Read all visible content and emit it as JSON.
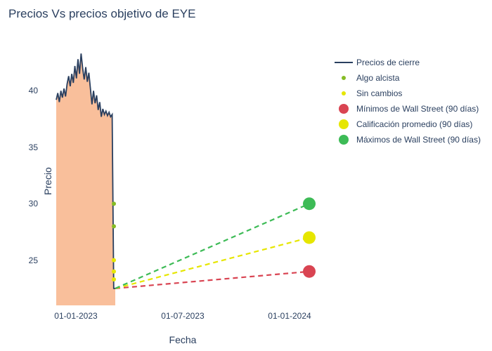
{
  "title": "Precios Vs precios objetivo de EYE",
  "axes": {
    "x": {
      "title": "Fecha",
      "ticks": [
        {
          "label": "01-01-2023",
          "t": 0.12
        },
        {
          "label": "01-07-2023",
          "t": 0.5
        },
        {
          "label": "01-01-2024",
          "t": 0.88
        }
      ],
      "range_t": [
        0.0,
        1.0
      ]
    },
    "y": {
      "title": "Precio",
      "ticks": [
        25,
        30,
        35,
        40
      ],
      "range": [
        21,
        44
      ]
    }
  },
  "colors": {
    "background": "#ffffff",
    "text": "#2a3f5f",
    "close_line": "#2a3f5f",
    "area_fill": "#f8b48a",
    "area_fill_opacity": 0.85,
    "bullish": "#86bc25",
    "unchanged": "#e6e600",
    "min": "#d94452",
    "avg": "#e6e600",
    "max": "#3dbb56"
  },
  "series": {
    "close": {
      "t_start": 0.05,
      "t_end": 0.26,
      "values": [
        39.2,
        39.8,
        39.0,
        40.0,
        39.4,
        40.2,
        39.5,
        40.6,
        41.3,
        40.4,
        41.5,
        40.7,
        42.2,
        41.1,
        42.8,
        41.5,
        43.3,
        42.0,
        41.0,
        42.1,
        40.8,
        41.6,
        40.2,
        38.8,
        40.0,
        38.9,
        39.6,
        38.3,
        39.0,
        37.7,
        38.4,
        37.9,
        38.2,
        37.8,
        38.1,
        37.7,
        37.9,
        22.5,
        22.5
      ]
    },
    "bullish_points": [
      {
        "t": 0.255,
        "v": 30.0
      },
      {
        "t": 0.255,
        "v": 28.0
      }
    ],
    "unchanged_points": [
      {
        "t": 0.255,
        "v": 25.0
      },
      {
        "t": 0.255,
        "v": 24.0
      },
      {
        "t": 0.255,
        "v": 23.3
      }
    ],
    "projections": {
      "t0": 0.26,
      "y0": 22.5,
      "t1": 0.95,
      "min": 24.0,
      "avg": 27.0,
      "max": 30.0
    }
  },
  "styles": {
    "close_line_width": 1.8,
    "dash": "7,5",
    "dash_width": 2.2,
    "marker_small_r": 3,
    "marker_large_r": 9
  },
  "legend": [
    {
      "key": "close",
      "label": "Precios de cierre",
      "kind": "line",
      "color_key": "close_line"
    },
    {
      "key": "bullish",
      "label": "Algo alcista",
      "kind": "dot-sm",
      "color_key": "bullish"
    },
    {
      "key": "unchanged",
      "label": "Sin cambios",
      "kind": "dot-sm",
      "color_key": "unchanged"
    },
    {
      "key": "min",
      "label": "Mínimos de Wall Street (90 días)",
      "kind": "dot-lg",
      "color_key": "min"
    },
    {
      "key": "avg",
      "label": "Calificación promedio (90 días)",
      "kind": "dot-lg",
      "color_key": "avg"
    },
    {
      "key": "max",
      "label": "Máximos de Wall Street (90 días)",
      "kind": "dot-lg",
      "color_key": "max"
    }
  ]
}
